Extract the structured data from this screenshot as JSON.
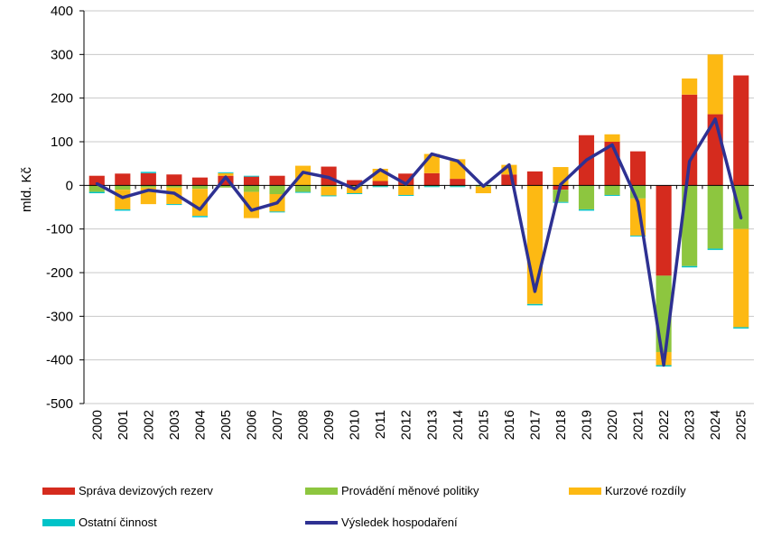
{
  "chart_data": {
    "type": "bar",
    "stacked": true,
    "ylabel": "mld. Kč",
    "ylim": [
      -500,
      400
    ],
    "yticks": [
      400,
      300,
      200,
      100,
      0,
      -100,
      -200,
      -300,
      -400,
      -500
    ],
    "categories": [
      "2000",
      "2001",
      "2002",
      "2003",
      "2004",
      "2005",
      "2006",
      "2007",
      "2008",
      "2009",
      "2010",
      "2011",
      "2012",
      "2013",
      "2014",
      "2015",
      "2016",
      "2017",
      "2018",
      "2019",
      "2020",
      "2021",
      "2022",
      "2023",
      "2024",
      "2025"
    ],
    "series": [
      {
        "name": "Správa devizových rezerv",
        "color": "#d52b1e",
        "values": [
          22,
          27,
          28,
          25,
          18,
          22,
          20,
          22,
          0,
          43,
          12,
          10,
          27,
          28,
          15,
          0,
          25,
          32,
          -10,
          115,
          100,
          78,
          -207,
          208,
          163,
          252
        ]
      },
      {
        "name": "Provádění měnové politiky",
        "color": "#8dc63f",
        "values": [
          -15,
          -10,
          -5,
          -5,
          -8,
          -5,
          -15,
          -20,
          -15,
          -3,
          -3,
          -2,
          -2,
          -2,
          -2,
          -3,
          0,
          0,
          -28,
          -55,
          -22,
          -30,
          -175,
          -185,
          -145,
          -100
        ]
      },
      {
        "name": "Kurzové rozdíly",
        "color": "#fdb913",
        "values": [
          0,
          -45,
          -38,
          -38,
          -62,
          6,
          -60,
          -40,
          45,
          -20,
          -15,
          28,
          -20,
          44,
          45,
          -15,
          22,
          -272,
          42,
          0,
          17,
          -85,
          -30,
          37,
          137,
          -225
        ]
      },
      {
        "name": "Ostatní činnost",
        "color": "#00c3c8",
        "values": [
          -3,
          -3,
          3,
          -2,
          -3,
          2,
          2,
          -2,
          -2,
          -2,
          -2,
          -2,
          -2,
          -2,
          -2,
          1,
          -1,
          -3,
          -2,
          -3,
          -2,
          -2,
          -3,
          -3,
          -3,
          -3
        ]
      }
    ],
    "line": {
      "name": "Výsledek hospodaření",
      "color": "#2e3192",
      "values": [
        4,
        -28,
        -11,
        -18,
        -55,
        19,
        -57,
        -40,
        30,
        18,
        -8,
        36,
        3,
        72,
        56,
        -2,
        47,
        -243,
        2,
        58,
        93,
        -38,
        -412,
        55,
        152,
        -75
      ]
    },
    "legend_position": "bottom"
  }
}
